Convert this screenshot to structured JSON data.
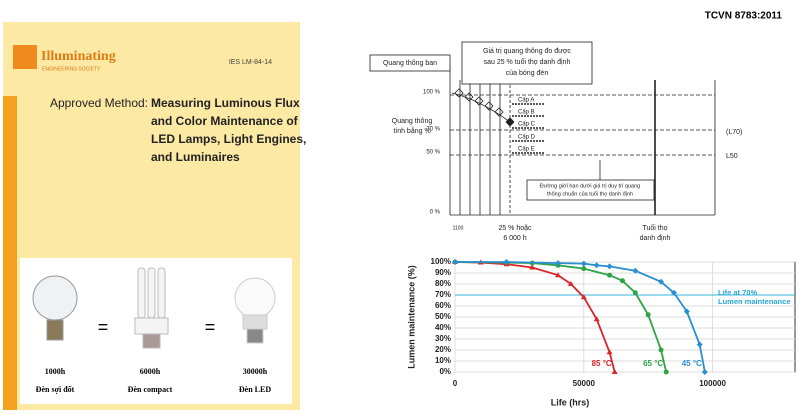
{
  "cover": {
    "logo": "Illuminating",
    "logo_sub": "ENGINEERING SOCIETY",
    "code": "IES LM-84-14",
    "method": "Approved Method:",
    "title": [
      "Measuring  Luminous Flux",
      "and Color Maintenance of",
      "LED Lamps, Light Engines,",
      "and Luminaires"
    ],
    "equals": "=",
    "bulbs": [
      {
        "hours": "1000h",
        "name": "Đèn sợi đốt"
      },
      {
        "hours": "6000h",
        "name": "Đèn compact"
      },
      {
        "hours": "30000h",
        "name": "Đèn LED"
      }
    ]
  },
  "diagram": {
    "standard": "TCVN 8783:2011",
    "initial": "Quang thông ban",
    "measured": [
      "Giá trị quang thông đo được",
      "sau 25 % tuổi thọ danh định",
      "của bóng đèn"
    ],
    "y_label": [
      "Quang thông",
      "tính bằng %"
    ],
    "levels": [
      "100 %",
      "70 %",
      "50 %",
      "0 %"
    ],
    "classes": [
      "Cấp A",
      "Cấp B",
      "Cấp C",
      "Cấp D",
      "Cấp E"
    ],
    "l70": "(L70)",
    "l50": "L50",
    "limit_note": [
      "Đường giới hạn dưới giá trị duy trì quang",
      "thông chuẩn của tuổi thọ danh định"
    ],
    "start": "1100",
    "quarter": [
      "25 % hoặc",
      "6 000 h"
    ],
    "rated": [
      "Tuổi thọ",
      "danh định"
    ]
  },
  "chart_data": {
    "type": "line",
    "x_label": "Life (hrs)",
    "y_label": "Lumen maintenance (%)",
    "xlim": [
      0,
      132000
    ],
    "xticks": [
      0,
      50000,
      100000
    ],
    "ylim": [
      0,
      100
    ],
    "yticks": [
      {
        "value": 0,
        "label": "0%"
      },
      {
        "value": 10,
        "label": "10%"
      },
      {
        "value": 20,
        "label": "20%"
      },
      {
        "value": 30,
        "label": "30%"
      },
      {
        "value": 40,
        "label": "40%"
      },
      {
        "value": 50,
        "label": "50%"
      },
      {
        "value": 60,
        "label": "60%"
      },
      {
        "value": 70,
        "label": "70%"
      },
      {
        "value": 80,
        "label": "80%"
      },
      {
        "value": 90,
        "label": "90%"
      },
      {
        "value": 100,
        "label": "100%"
      }
    ],
    "grid": true,
    "reference_line": 70,
    "reference_label": [
      "Life at 70%",
      "Lumen maintenance"
    ],
    "series": [
      {
        "name": "85 °C",
        "color": "#d9262b",
        "marker": "triangle",
        "x": [
          0,
          10000,
          20000,
          30000,
          40000,
          45000,
          50000,
          55000,
          60000,
          62000
        ],
        "values": [
          100,
          99.5,
          98,
          95,
          88,
          80,
          68,
          48,
          18,
          0
        ]
      },
      {
        "name": "65 °C",
        "color": "#2fa346",
        "marker": "circle",
        "x": [
          0,
          20000,
          30000,
          40000,
          50000,
          60000,
          65000,
          70000,
          75000,
          80000,
          82000
        ],
        "values": [
          100,
          99.5,
          99,
          97,
          94,
          88,
          83,
          72,
          52,
          20,
          0
        ]
      },
      {
        "name": "45 °C",
        "color": "#2a8fd0",
        "marker": "diamond",
        "x": [
          0,
          20000,
          40000,
          50000,
          55000,
          60000,
          70000,
          80000,
          85000,
          90000,
          95000,
          97000
        ],
        "values": [
          100,
          100,
          99,
          98.5,
          97,
          96,
          92,
          82,
          72,
          55,
          25,
          0
        ]
      }
    ]
  }
}
